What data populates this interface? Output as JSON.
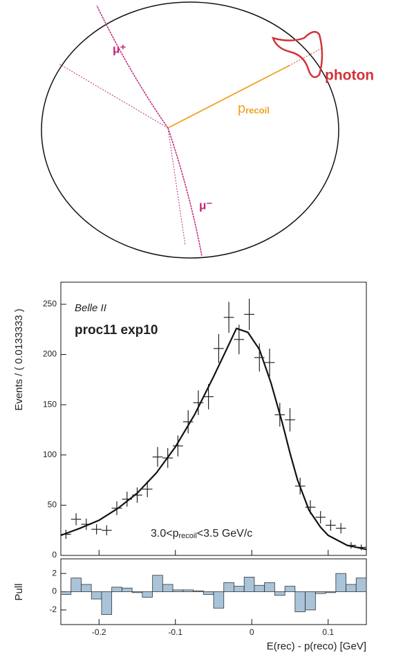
{
  "diagram": {
    "labels": {
      "mu_plus": "μ⁺",
      "mu_minus": "μ⁻",
      "p": "p",
      "recoil": "recoil",
      "photon": "photon"
    }
  },
  "chart_data": [
    {
      "type": "errorbar",
      "ylabel": "Events / ( 0.0133333 )",
      "annotations": {
        "experiment": "Belle II",
        "sample": "proc11 exp10",
        "cut_a": "3.0<p",
        "cut_sub": "recoil",
        "cut_b": "<3.5 GeV/c"
      },
      "x": [
        -0.2433,
        -0.23,
        -0.2167,
        -0.2033,
        -0.19,
        -0.1767,
        -0.1633,
        -0.15,
        -0.1367,
        -0.1233,
        -0.11,
        -0.0967,
        -0.0833,
        -0.07,
        -0.0567,
        -0.0433,
        -0.03,
        -0.0167,
        -0.0033,
        0.01,
        0.0233,
        0.0367,
        0.05,
        0.0633,
        0.0767,
        0.09,
        0.1033,
        0.1167,
        0.13,
        0.1433
      ],
      "values": [
        21,
        36,
        31,
        26,
        25,
        47,
        56,
        60,
        66,
        98,
        97,
        109,
        133,
        152,
        158,
        206,
        237,
        215,
        240,
        197,
        192,
        140,
        135,
        69,
        48,
        38,
        30,
        27,
        10,
        8
      ],
      "errors": [
        4.6,
        6,
        5.6,
        5.1,
        5,
        6.9,
        7.5,
        7.7,
        8.1,
        9.9,
        9.8,
        10.4,
        11.5,
        12.3,
        12.6,
        14.4,
        15.4,
        14.7,
        15.5,
        14,
        13.9,
        11.8,
        11.6,
        8.3,
        6.9,
        6.2,
        5.5,
        5.2,
        3.2,
        2.8
      ],
      "color": "#222222",
      "fit": {
        "x": [
          -0.25,
          -0.225,
          -0.2,
          -0.175,
          -0.15,
          -0.125,
          -0.1,
          -0.075,
          -0.05,
          -0.035,
          -0.02,
          -0.005,
          0.01,
          0.025,
          0.04,
          0.05,
          0.06,
          0.075,
          0.09,
          0.1,
          0.125,
          0.15
        ],
        "values": [
          20,
          27,
          35,
          47,
          62,
          82,
          108,
          140,
          178,
          202,
          226,
          222,
          205,
          172,
          132,
          102,
          75,
          45,
          28,
          20,
          10,
          6
        ],
        "color": "#111111"
      },
      "xlim": [
        -0.25,
        0.15
      ],
      "xticks": [
        -0.2,
        -0.1,
        0,
        0.1
      ],
      "ylim": [
        0,
        272
      ],
      "yticks": [
        0,
        50,
        100,
        150,
        200,
        250
      ]
    },
    {
      "type": "bar",
      "xlabel": "E(rec) - p(reco) [GeV]",
      "ylabel": "Pull",
      "x": [
        -0.2433,
        -0.23,
        -0.2167,
        -0.2033,
        -0.19,
        -0.1767,
        -0.1633,
        -0.15,
        -0.1367,
        -0.1233,
        -0.11,
        -0.0967,
        -0.0833,
        -0.07,
        -0.0567,
        -0.0433,
        -0.03,
        -0.0167,
        -0.0033,
        0.01,
        0.0233,
        0.0367,
        0.05,
        0.0633,
        0.0767,
        0.09,
        0.1033,
        0.1167,
        0.13,
        0.1433
      ],
      "values": [
        -0.3,
        1.5,
        0.8,
        -0.8,
        -2.5,
        0.5,
        0.4,
        -0.1,
        -0.6,
        1.8,
        0.8,
        0.2,
        0.2,
        0.1,
        -0.3,
        -1.8,
        1.0,
        0.6,
        1.6,
        0.7,
        1.0,
        -0.4,
        0.6,
        -2.2,
        -2.0,
        -0.2,
        -0.1,
        2.0,
        0.8,
        1.5
      ],
      "color": "#a9c4d9",
      "xlim": [
        -0.25,
        0.15
      ],
      "xticks": [
        -0.2,
        -0.1,
        0,
        0.1
      ],
      "ylim": [
        -3.6,
        3.6
      ],
      "yticks": [
        -2,
        0,
        2
      ]
    }
  ]
}
